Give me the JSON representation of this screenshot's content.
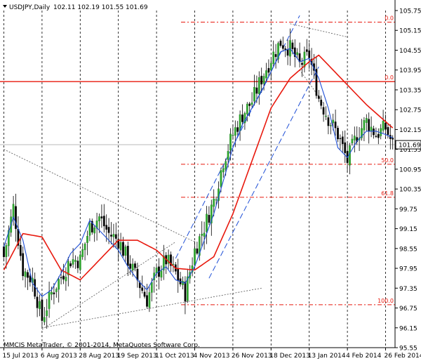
{
  "header": {
    "symbol": "USDJPY,Daily",
    "ohlc": "102.11 102.19 101.55 101.69"
  },
  "footer": {
    "copyright": "MMCIS MetaTrader, © 2001-2014, MetaQuotes Software Corp."
  },
  "chart_data": {
    "type": "candlestick",
    "symbol": "USDJPY",
    "timeframe": "Daily",
    "current_price": 101.69,
    "current_price_label": "101.69",
    "ylim": [
      95.55,
      105.75
    ],
    "y_ticks": [
      {
        "value": 105.75,
        "label": "105.75"
      },
      {
        "value": 105.15,
        "label": "105.15"
      },
      {
        "value": 104.55,
        "label": "104.55"
      },
      {
        "value": 103.95,
        "label": "103.95"
      },
      {
        "value": 103.35,
        "label": "103.35"
      },
      {
        "value": 102.75,
        "label": "102.75"
      },
      {
        "value": 102.15,
        "label": "102.15"
      },
      {
        "value": 101.55,
        "label": "101.55"
      },
      {
        "value": 100.95,
        "label": "100.95"
      },
      {
        "value": 100.35,
        "label": "100.35"
      },
      {
        "value": 99.75,
        "label": "99.75"
      },
      {
        "value": 99.15,
        "label": "99.15"
      },
      {
        "value": 98.55,
        "label": "98.55"
      },
      {
        "value": 97.95,
        "label": "97.95"
      },
      {
        "value": 97.35,
        "label": "97.35"
      },
      {
        "value": 96.75,
        "label": "96.75"
      },
      {
        "value": 96.15,
        "label": "96.15"
      },
      {
        "value": 95.55,
        "label": "95.55"
      }
    ],
    "x_ticks": [
      {
        "label": "15 Jul 2013",
        "bar": 0
      },
      {
        "label": "6 Aug 2013",
        "bar": 16
      },
      {
        "label": "28 Aug 2013",
        "bar": 32
      },
      {
        "label": "19 Sep 2013",
        "bar": 48
      },
      {
        "label": "11 Oct 2013",
        "bar": 64
      },
      {
        "label": "4 Nov 2013",
        "bar": 80
      },
      {
        "label": "26 Nov 2013",
        "bar": 96
      },
      {
        "label": "18 Dec 2013",
        "bar": 112
      },
      {
        "label": "13 Jan 2014",
        "bar": 128
      },
      {
        "label": "4 Feb 2014",
        "bar": 144
      },
      {
        "label": "26 Feb 2014",
        "bar": 160
      }
    ],
    "fibonacci_levels": [
      {
        "label": "0.0",
        "value": 105.4
      },
      {
        "label": "50.0",
        "value": 101.1
      },
      {
        "label": "61.8",
        "value": 100.1
      },
      {
        "label": "100.0",
        "value": 96.85
      }
    ],
    "horizontal_line": {
      "label": "0.0",
      "value": 103.6
    },
    "key_closes": [
      {
        "bar": 0,
        "close": 98.3
      },
      {
        "bar": 4,
        "close": 99.8
      },
      {
        "bar": 8,
        "close": 97.9
      },
      {
        "bar": 12,
        "close": 97.6
      },
      {
        "bar": 16,
        "close": 96.4
      },
      {
        "bar": 20,
        "close": 97.2
      },
      {
        "bar": 24,
        "close": 97.7
      },
      {
        "bar": 28,
        "close": 98.2
      },
      {
        "bar": 32,
        "close": 98.2
      },
      {
        "bar": 36,
        "close": 99.2
      },
      {
        "bar": 40,
        "close": 99.5
      },
      {
        "bar": 44,
        "close": 99.0
      },
      {
        "bar": 48,
        "close": 98.8
      },
      {
        "bar": 52,
        "close": 98.2
      },
      {
        "bar": 56,
        "close": 97.6
      },
      {
        "bar": 60,
        "close": 97.0
      },
      {
        "bar": 64,
        "close": 97.8
      },
      {
        "bar": 68,
        "close": 98.2
      },
      {
        "bar": 72,
        "close": 97.8
      },
      {
        "bar": 76,
        "close": 97.2
      },
      {
        "bar": 80,
        "close": 98.5
      },
      {
        "bar": 84,
        "close": 99.2
      },
      {
        "bar": 88,
        "close": 100.0
      },
      {
        "bar": 92,
        "close": 101.2
      },
      {
        "bar": 96,
        "close": 102.0
      },
      {
        "bar": 100,
        "close": 102.6
      },
      {
        "bar": 104,
        "close": 103.0
      },
      {
        "bar": 108,
        "close": 103.7
      },
      {
        "bar": 112,
        "close": 104.3
      },
      {
        "bar": 116,
        "close": 104.8
      },
      {
        "bar": 120,
        "close": 104.6
      },
      {
        "bar": 124,
        "close": 104.1
      },
      {
        "bar": 128,
        "close": 104.4
      },
      {
        "bar": 132,
        "close": 103.1
      },
      {
        "bar": 136,
        "close": 102.5
      },
      {
        "bar": 140,
        "close": 102.0
      },
      {
        "bar": 144,
        "close": 101.2
      },
      {
        "bar": 148,
        "close": 102.0
      },
      {
        "bar": 152,
        "close": 102.4
      },
      {
        "bar": 156,
        "close": 102.0
      },
      {
        "bar": 160,
        "close": 102.2
      },
      {
        "bar": 163,
        "close": 101.69
      }
    ],
    "indicators": [
      {
        "color": "#e8190e",
        "key_values": [
          {
            "bar": 0,
            "value": 97.9
          },
          {
            "bar": 8,
            "value": 99.0
          },
          {
            "bar": 16,
            "value": 98.9
          },
          {
            "bar": 24,
            "value": 97.9
          },
          {
            "bar": 32,
            "value": 97.6
          },
          {
            "bar": 40,
            "value": 98.2
          },
          {
            "bar": 48,
            "value": 98.8
          },
          {
            "bar": 56,
            "value": 98.8
          },
          {
            "bar": 64,
            "value": 98.5
          },
          {
            "bar": 72,
            "value": 97.95
          },
          {
            "bar": 80,
            "value": 97.9
          },
          {
            "bar": 88,
            "value": 98.3
          },
          {
            "bar": 96,
            "value": 99.6
          },
          {
            "bar": 104,
            "value": 101.2
          },
          {
            "bar": 112,
            "value": 102.8
          },
          {
            "bar": 120,
            "value": 103.7
          },
          {
            "bar": 128,
            "value": 104.2
          },
          {
            "bar": 132,
            "value": 104.4
          },
          {
            "bar": 136,
            "value": 104.1
          },
          {
            "bar": 144,
            "value": 103.5
          },
          {
            "bar": 152,
            "value": 102.9
          },
          {
            "bar": 163,
            "value": 102.2
          }
        ]
      },
      {
        "color": "#1f4fd6",
        "key_values": [
          {
            "bar": 0,
            "value": 98.6
          },
          {
            "bar": 4,
            "value": 99.5
          },
          {
            "bar": 8,
            "value": 98.8
          },
          {
            "bar": 12,
            "value": 97.5
          },
          {
            "bar": 16,
            "value": 97.1
          },
          {
            "bar": 20,
            "value": 97.3
          },
          {
            "bar": 24,
            "value": 97.8
          },
          {
            "bar": 28,
            "value": 98.4
          },
          {
            "bar": 32,
            "value": 98.7
          },
          {
            "bar": 36,
            "value": 99.4
          },
          {
            "bar": 40,
            "value": 99.1
          },
          {
            "bar": 44,
            "value": 98.8
          },
          {
            "bar": 48,
            "value": 98.5
          },
          {
            "bar": 52,
            "value": 98.0
          },
          {
            "bar": 56,
            "value": 97.6
          },
          {
            "bar": 60,
            "value": 97.3
          },
          {
            "bar": 64,
            "value": 97.8
          },
          {
            "bar": 68,
            "value": 98.0
          },
          {
            "bar": 72,
            "value": 97.6
          },
          {
            "bar": 76,
            "value": 97.5
          },
          {
            "bar": 80,
            "value": 98.0
          },
          {
            "bar": 84,
            "value": 98.8
          },
          {
            "bar": 88,
            "value": 99.6
          },
          {
            "bar": 92,
            "value": 100.6
          },
          {
            "bar": 96,
            "value": 101.6
          },
          {
            "bar": 100,
            "value": 102.3
          },
          {
            "bar": 104,
            "value": 102.8
          },
          {
            "bar": 108,
            "value": 103.3
          },
          {
            "bar": 112,
            "value": 103.9
          },
          {
            "bar": 116,
            "value": 104.5
          },
          {
            "bar": 120,
            "value": 104.6
          },
          {
            "bar": 124,
            "value": 104.2
          },
          {
            "bar": 128,
            "value": 104.3
          },
          {
            "bar": 132,
            "value": 103.7
          },
          {
            "bar": 136,
            "value": 102.8
          },
          {
            "bar": 140,
            "value": 101.6
          },
          {
            "bar": 144,
            "value": 101.3
          },
          {
            "bar": 148,
            "value": 101.8
          },
          {
            "bar": 152,
            "value": 102.1
          },
          {
            "bar": 156,
            "value": 102.1
          },
          {
            "bar": 160,
            "value": 102.0
          },
          {
            "bar": 163,
            "value": 101.9
          }
        ]
      }
    ],
    "trendlines": [
      {
        "style": "dotted",
        "from": {
          "bar": 0,
          "value": 101.55
        },
        "to": {
          "bar": 80,
          "value": 98.75
        }
      },
      {
        "style": "dotted",
        "from": {
          "bar": 16,
          "value": 96.1
        },
        "to": {
          "bar": 72,
          "value": 98.75
        }
      },
      {
        "style": "dotted",
        "from": {
          "bar": 16,
          "value": 96.15
        },
        "to": {
          "bar": 108,
          "value": 97.35
        }
      },
      {
        "style": "dashed",
        "from": {
          "bar": 72,
          "value": 98.25
        },
        "to": {
          "bar": 124,
          "value": 105.6
        }
      },
      {
        "style": "dashed",
        "from": {
          "bar": 86,
          "value": 97.65
        },
        "to": {
          "bar": 132,
          "value": 104.05
        }
      },
      {
        "style": "dotted",
        "from": {
          "bar": 120,
          "value": 105.35
        },
        "to": {
          "bar": 144,
          "value": 104.95
        }
      },
      {
        "style": "dotted",
        "from": {
          "bar": 124,
          "value": 103.95
        },
        "to": {
          "bar": 134,
          "value": 102.95
        }
      }
    ]
  }
}
